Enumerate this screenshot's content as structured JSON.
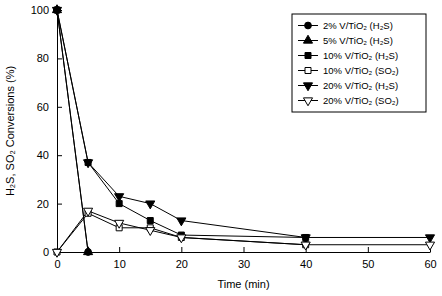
{
  "chart_data": {
    "type": "line",
    "x_label": "Time (min)",
    "y_label": "H₂S, SO₂ Conversions (%)",
    "xlim": [
      0,
      60
    ],
    "xticks": [
      0,
      10,
      20,
      30,
      40,
      50,
      60
    ],
    "ylim": [
      0,
      100
    ],
    "yticks": [
      0,
      20,
      40,
      60,
      80,
      100
    ],
    "grid": false,
    "legend": "upper right",
    "series": [
      {
        "name": "2% V/TiO₂ (H₂S)",
        "color": "#000000",
        "marker": "circle",
        "line_style": "solid",
        "x": [
          0,
          5
        ],
        "values": [
          100,
          0
        ]
      },
      {
        "name": "5% V/TiO₂ (H₂S)",
        "color": "#000000",
        "marker": "triangle",
        "line_style": "solid",
        "x": [
          0,
          5
        ],
        "values": [
          100,
          0
        ]
      },
      {
        "name": "10% V/TiO₂ (H₂S)",
        "color": "#000000",
        "marker": "square",
        "line_style": "solid",
        "x": [
          0,
          5,
          10,
          15,
          20,
          40
        ],
        "values": [
          100,
          37,
          20,
          13,
          7,
          6
        ]
      },
      {
        "name": "10% V/TiO₂ (SO₂)",
        "color": "#000000",
        "marker": "square-open",
        "line_style": "solid",
        "x": [
          0,
          5,
          10,
          15,
          20,
          40
        ],
        "values": [
          0,
          16,
          10,
          10,
          6,
          3
        ]
      },
      {
        "name": "20% V/TiO₂ (H₂S)",
        "color": "#000000",
        "marker": "triangle-down",
        "line_style": "solid",
        "x": [
          0,
          5,
          10,
          15,
          20,
          40,
          60
        ],
        "values": [
          100,
          37,
          23,
          20,
          13,
          6,
          6
        ]
      },
      {
        "name": "20% V/TiO₂ (SO₂)",
        "color": "#000000",
        "marker": "triangle-down-open",
        "line_style": "solid",
        "x": [
          0,
          5,
          10,
          15,
          20,
          40,
          60
        ],
        "values": [
          0,
          17,
          12,
          9,
          6,
          3,
          3
        ]
      }
    ]
  }
}
